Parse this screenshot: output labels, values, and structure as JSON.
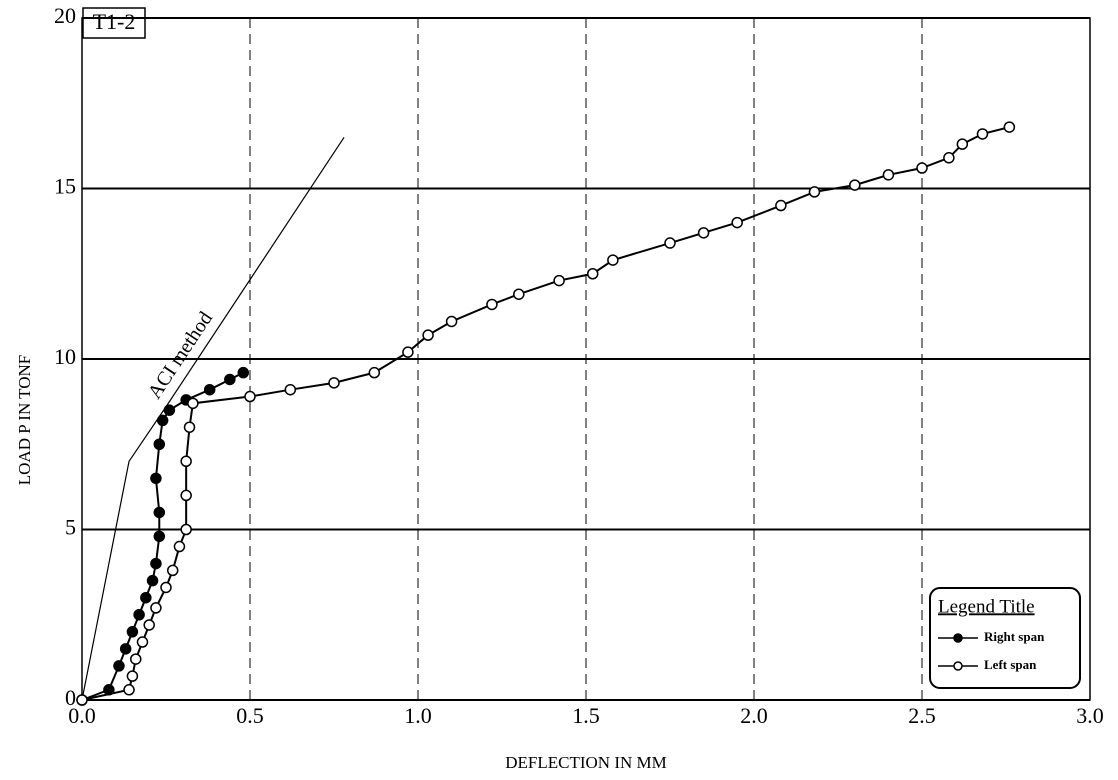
{
  "chart_data": {
    "type": "line",
    "panel_label": "T1-2",
    "x_label": "DEFLECTION IN MM",
    "y_label": "LOAD P IN TONF",
    "xlim": [
      0,
      3
    ],
    "ylim": [
      0,
      20
    ],
    "xticks": [
      {
        "value": 0,
        "label": "0.0"
      },
      0.5,
      {
        "value": 1,
        "label": "1.0"
      },
      1.5,
      {
        "value": 2,
        "label": "2.0"
      },
      2.5,
      {
        "value": 3,
        "label": "3.0"
      }
    ],
    "yticks": [
      0,
      5,
      10,
      15,
      20
    ],
    "grid": true,
    "legend": {
      "title": "Legend Title",
      "position": "lower right"
    },
    "series": [
      {
        "name": "ACI method",
        "color": "#000000",
        "marker": "none",
        "x": [
          0,
          0.14,
          0.25,
          0.78
        ],
        "values": [
          0,
          7,
          8.6,
          16.5
        ]
      },
      {
        "name": "Right span",
        "color": "#000000",
        "marker": "filled",
        "x": [
          0,
          0.08,
          0.11,
          0.13,
          0.15,
          0.17,
          0.19,
          0.21,
          0.22,
          0.23,
          0.23,
          0.22,
          0.23,
          0.24,
          0.26,
          0.31,
          0.38,
          0.44,
          0.48
        ],
        "values": [
          0,
          0.3,
          1,
          1.5,
          2,
          2.5,
          3,
          3.5,
          4,
          4.8,
          5.5,
          6.5,
          7.5,
          8.2,
          8.5,
          8.8,
          9.1,
          9.4,
          9.6
        ]
      },
      {
        "name": "Left span",
        "color": "#000000",
        "marker": "open",
        "x": [
          0,
          0.14,
          0.15,
          0.16,
          0.18,
          0.2,
          0.22,
          0.25,
          0.27,
          0.29,
          0.31,
          0.31,
          0.31,
          0.32,
          0.33,
          0.5,
          0.62,
          0.75,
          0.87,
          0.97,
          1.03,
          1.1,
          1.22,
          1.3,
          1.42,
          1.52,
          1.58,
          1.75,
          1.85,
          1.95,
          2.08,
          2.18,
          2.3,
          2.4,
          2.5,
          2.58,
          2.62,
          2.68,
          2.76
        ],
        "values": [
          0,
          0.3,
          0.7,
          1.2,
          1.7,
          2.2,
          2.7,
          3.3,
          3.8,
          4.5,
          5,
          6,
          7,
          8,
          8.7,
          8.9,
          9.1,
          9.3,
          9.6,
          10.2,
          10.7,
          11.1,
          11.6,
          11.9,
          12.3,
          12.5,
          12.9,
          13.4,
          13.7,
          14,
          14.5,
          14.9,
          15.1,
          15.4,
          15.6,
          15.9,
          16.3,
          16.6,
          16.8
        ]
      }
    ]
  }
}
